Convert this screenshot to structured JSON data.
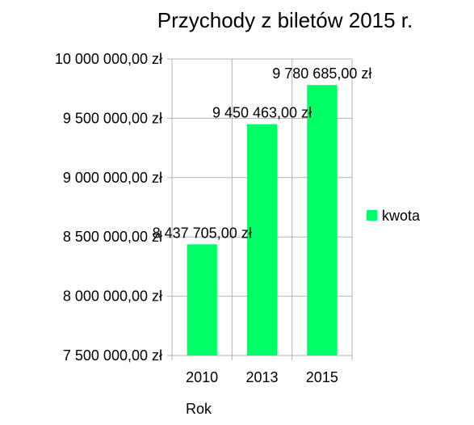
{
  "chart_data": {
    "type": "bar",
    "title": "Przychody z biletów 2015 r.",
    "xlabel": "Rok",
    "ylabel": "",
    "categories": [
      "2010",
      "2013",
      "2015"
    ],
    "series": [
      {
        "name": "kwota",
        "values": [
          8437705,
          9450463,
          9780685
        ],
        "color": "#00ff66",
        "data_labels": [
          "8 437 705,00 zł",
          "9 450 463,00 zł",
          "9 780 685,00 zł"
        ]
      }
    ],
    "ylim": [
      7500000,
      10000000
    ],
    "yticks": [
      7500000,
      8000000,
      8500000,
      9000000,
      9500000,
      10000000
    ],
    "ytick_labels": [
      "7 500 000,00 zł",
      "8 000 000,00 zł",
      "8 500 000,00 zł",
      "9 000 000,00 zł",
      "9 500 000,00 zł",
      "10 000 000,00 zł"
    ],
    "grid": true,
    "legend": "right",
    "colors": {
      "bar": "#00ff66",
      "grid": "#b3b3b3",
      "axis": "#b3b3b3",
      "text": "#000000"
    }
  }
}
